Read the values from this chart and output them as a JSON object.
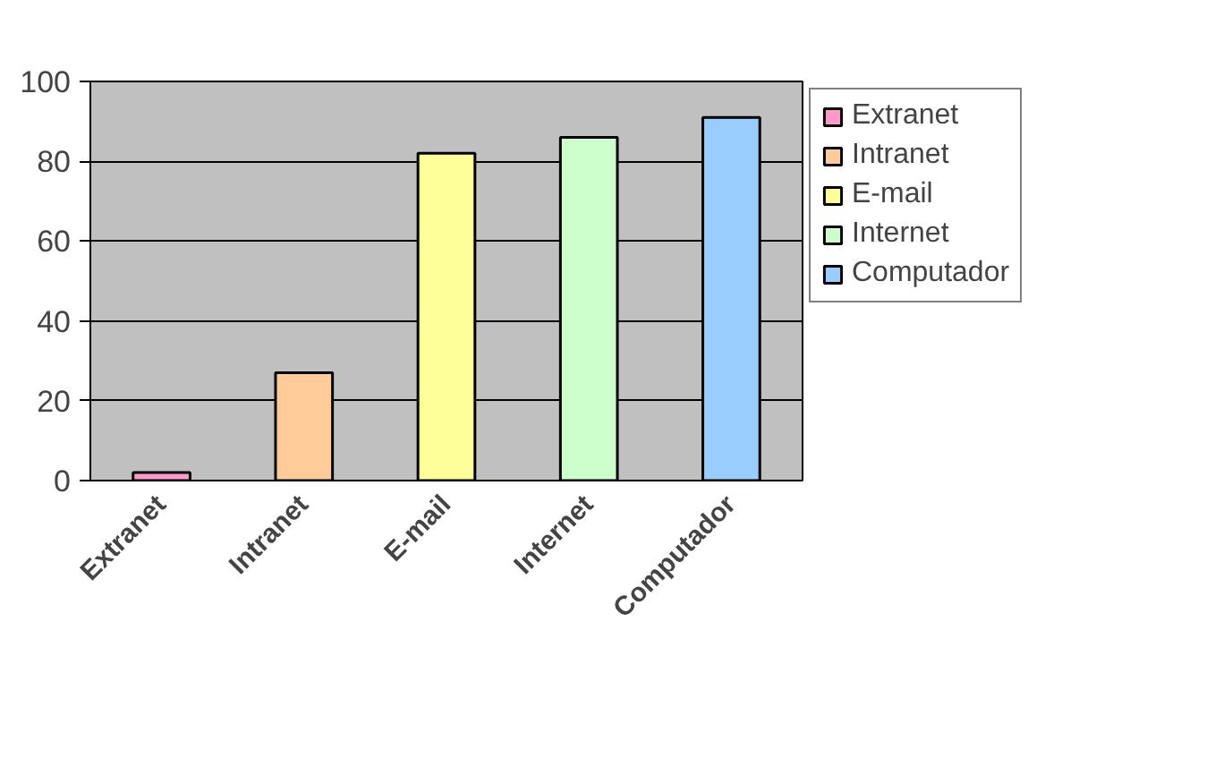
{
  "chart_data": {
    "type": "bar",
    "categories": [
      "Extranet",
      "Intranet",
      "E-mail",
      "Internet",
      "Computador"
    ],
    "stacked": true,
    "series": [
      {
        "name": "Extranet",
        "color": "#ff99cc",
        "values": [
          2,
          null,
          null,
          null,
          null
        ]
      },
      {
        "name": "Intranet",
        "color": "#ffcc99",
        "values": [
          null,
          27,
          null,
          null,
          null
        ]
      },
      {
        "name": "E-mail",
        "color": "#ffff99",
        "values": [
          null,
          null,
          82,
          null,
          null
        ]
      },
      {
        "name": "Internet",
        "color": "#ccffcc",
        "values": [
          null,
          null,
          null,
          86,
          null
        ]
      },
      {
        "name": "Computador",
        "color": "#99ccff",
        "values": [
          null,
          null,
          null,
          null,
          91
        ]
      }
    ],
    "ylim": [
      0,
      100
    ],
    "yticks": [
      0,
      20,
      40,
      60,
      80,
      100
    ],
    "grid": "y",
    "legend": "right"
  }
}
